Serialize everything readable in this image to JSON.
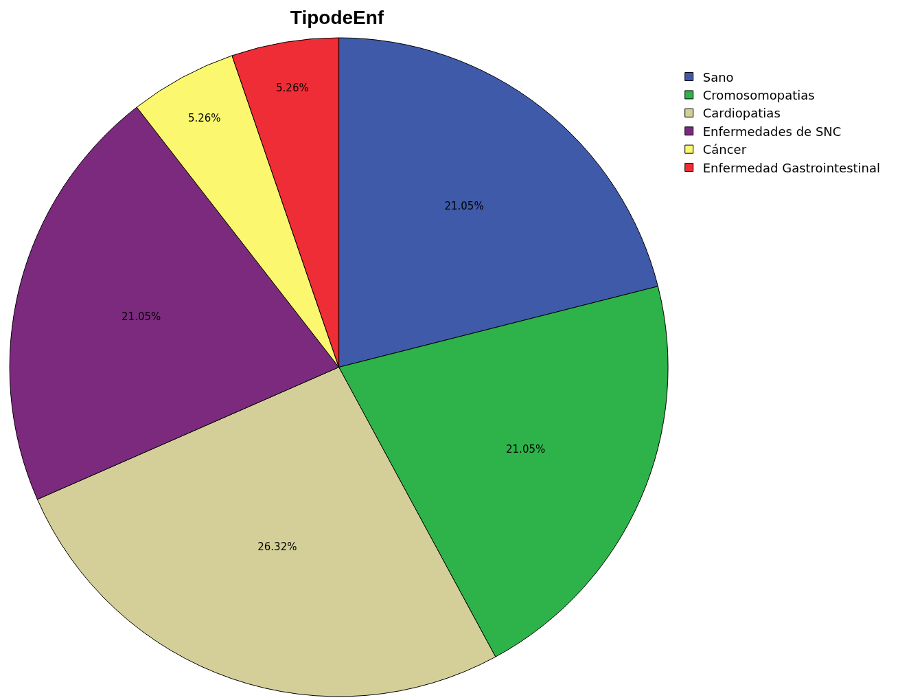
{
  "chart_data": {
    "type": "pie",
    "title": "TipodeEnf",
    "categories": [
      "Sano",
      "Cromosomopatias",
      "Cardiopatias",
      "Enfermedades de SNC",
      "Cáncer",
      "Enfermedad Gastrointestinal"
    ],
    "values": [
      21.05,
      21.05,
      26.32,
      21.05,
      5.26,
      5.26
    ],
    "value_labels": [
      "21.05%",
      "21.05%",
      "26.32%",
      "21.05%",
      "5.26%",
      "5.26%"
    ],
    "colors": [
      "#3f5aa8",
      "#2db34a",
      "#d4cf98",
      "#7b2a7e",
      "#fbf86f",
      "#ee2d36"
    ],
    "legend": "top right"
  }
}
